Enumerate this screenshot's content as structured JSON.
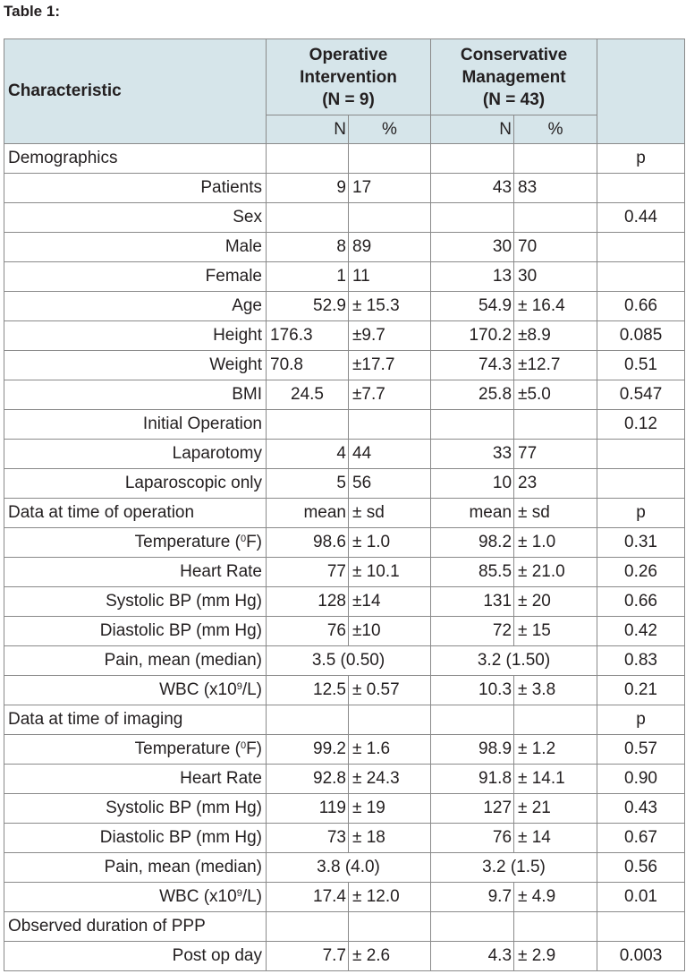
{
  "caption": "Table 1:",
  "header": {
    "characteristic": "Characteristic",
    "operative": [
      "Operative",
      "Intervention",
      "(N = 9)"
    ],
    "conservative": [
      "Conservative",
      "Management",
      "(N = 43)"
    ],
    "op_n": "N",
    "op_pct": "%",
    "cons_n": "N",
    "cons_pct": "%"
  },
  "rows": [
    {
      "type": "section",
      "label": "Demographics",
      "a": "",
      "b": "",
      "c": "",
      "d": "",
      "p": "p"
    },
    {
      "type": "row",
      "label": "Patients",
      "a": "9",
      "b": "17",
      "c": "43",
      "d": "83",
      "p": ""
    },
    {
      "type": "row",
      "label": "Sex",
      "a": "",
      "b": "",
      "c": "",
      "d": "",
      "p": "0.44"
    },
    {
      "type": "row",
      "label": "Male",
      "a": "8",
      "b": "89",
      "c": "30",
      "d": "70",
      "p": ""
    },
    {
      "type": "row",
      "label": "Female",
      "a": "1",
      "b": "11",
      "c": "13",
      "d": "30",
      "p": ""
    },
    {
      "type": "row",
      "label": "Age",
      "a": "52.9",
      "b": "± 15.3",
      "c": "54.9",
      "d": "± 16.4",
      "p": "0.66"
    },
    {
      "type": "row",
      "label": "Height",
      "a": "176.3",
      "b": "±9.7",
      "c": "170.2",
      "d": "±8.9",
      "p": "0.085",
      "aAlign": "l"
    },
    {
      "type": "row",
      "label": "Weight",
      "a": "70.8",
      "b": "±17.7",
      "c": "74.3",
      "d": "±12.7",
      "p": "0.51",
      "aAlign": "l"
    },
    {
      "type": "row",
      "label": "BMI",
      "a": "24.5",
      "b": "±7.7",
      "c": "25.8",
      "d": "±5.0",
      "p": "0.547",
      "aAlign": "c"
    },
    {
      "type": "row",
      "label": "Initial Operation",
      "a": "",
      "b": "",
      "c": "",
      "d": "",
      "p": "0.12"
    },
    {
      "type": "row",
      "label": "Laparotomy",
      "a": "4",
      "b": "44",
      "c": "33",
      "d": "77",
      "p": ""
    },
    {
      "type": "row",
      "label": "Laparoscopic only",
      "a": "5",
      "b": "56",
      "c": "10",
      "d": "23",
      "p": ""
    },
    {
      "type": "section",
      "label": "Data at time of operation",
      "a": "mean",
      "b": "± sd",
      "c": "mean",
      "d": "± sd",
      "p": "p"
    },
    {
      "type": "row",
      "label": "Temperature (",
      "sup": "0",
      "labelEnd": "F)",
      "a": "98.6",
      "b": "± 1.0",
      "c": "98.2",
      "d": "± 1.0",
      "p": "0.31"
    },
    {
      "type": "row",
      "label": "Heart Rate",
      "a": "77",
      "b": "± 10.1",
      "c": "85.5",
      "d": "± 21.0",
      "p": "0.26"
    },
    {
      "type": "row",
      "label": "Systolic BP (mm Hg)",
      "a": "128",
      "b": "±14",
      "c": "131",
      "d": "± 20",
      "p": "0.66"
    },
    {
      "type": "row",
      "label": "Diastolic BP (mm Hg)",
      "a": "76",
      "b": "±10",
      "c": "72",
      "d": "± 15",
      "p": "0.42"
    },
    {
      "type": "span",
      "label": "Pain, mean (median)",
      "op": "3.5 (0.50)",
      "cons": "3.2 (1.50)",
      "p": "0.83"
    },
    {
      "type": "row",
      "label": "WBC (x10",
      "sup": "9",
      "labelEnd": "/L)",
      "a": "12.5",
      "b": "± 0.57",
      "c": "10.3",
      "d": "± 3.8",
      "p": "0.21"
    },
    {
      "type": "section",
      "label": "Data at time of imaging",
      "a": "",
      "b": "",
      "c": "",
      "d": "",
      "p": "p"
    },
    {
      "type": "row",
      "label": "Temperature (",
      "sup": "0",
      "labelEnd": "F)",
      "a": "99.2",
      "b": "± 1.6",
      "c": "98.9",
      "d": "± 1.2",
      "p": "0.57"
    },
    {
      "type": "row",
      "label": "Heart Rate",
      "a": "92.8",
      "b": "± 24.3",
      "c": "91.8",
      "d": "± 14.1",
      "p": "0.90"
    },
    {
      "type": "row",
      "label": "Systolic BP (mm Hg)",
      "a": "119",
      "b": "± 19",
      "c": "127",
      "d": "± 21",
      "p": "0.43"
    },
    {
      "type": "row",
      "label": "Diastolic BP (mm Hg)",
      "a": "73",
      "b": "± 18",
      "c": "76",
      "d": "± 14",
      "p": "0.67"
    },
    {
      "type": "span",
      "label": "Pain, mean (median)",
      "op": "3.8 (4.0)",
      "cons": "3.2 (1.5)",
      "p": "0.56"
    },
    {
      "type": "row",
      "label": "WBC (x10",
      "sup": "9",
      "labelEnd": "/L)",
      "a": "17.4",
      "b": "± 12.0",
      "c": "9.7",
      "d": "± 4.9",
      "p": "0.01"
    },
    {
      "type": "section",
      "label": "Observed duration of PPP",
      "a": "",
      "b": "",
      "c": "",
      "d": "",
      "p": ""
    },
    {
      "type": "row",
      "label": "Post op day",
      "a": "7.7",
      "b": "± 2.6",
      "c": "4.3",
      "d": "± 2.9",
      "p": "0.003"
    }
  ]
}
